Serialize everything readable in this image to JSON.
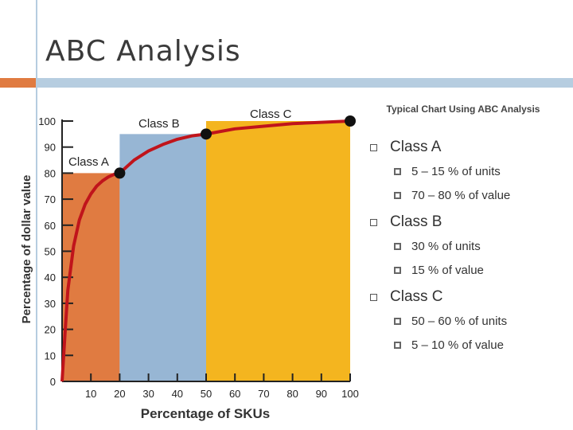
{
  "page": {
    "title": "ABC Analysis"
  },
  "colors": {
    "class_a": "#e07b41",
    "class_b": "#97b6d4",
    "class_c": "#f4b51f",
    "curve": "#c0141b",
    "accent": "#e07b41",
    "decor": "#b6cde0"
  },
  "chart_data": {
    "type": "area",
    "title": "Typical Chart Using ABC Analysis",
    "xlabel": "Percentage of SKUs",
    "ylabel": "Percentage of dollar value",
    "xlim": [
      0,
      100
    ],
    "ylim": [
      0,
      100
    ],
    "x_ticks": [
      10,
      20,
      30,
      40,
      50,
      60,
      70,
      80,
      90,
      100
    ],
    "y_ticks": [
      0,
      10,
      20,
      30,
      40,
      50,
      60,
      70,
      80,
      90,
      100
    ],
    "regions": [
      {
        "name": "Class A",
        "x_start": 0,
        "x_end": 20,
        "y_top": 80
      },
      {
        "name": "Class B",
        "x_start": 20,
        "x_end": 50,
        "y_top": 95
      },
      {
        "name": "Class C",
        "x_start": 50,
        "x_end": 100,
        "y_top": 100
      }
    ],
    "curve": {
      "x": [
        0,
        1,
        2,
        4,
        6,
        8,
        10,
        12,
        14,
        16,
        18,
        20,
        25,
        30,
        35,
        40,
        45,
        50,
        60,
        70,
        80,
        90,
        100
      ],
      "y": [
        0,
        18,
        35,
        52,
        62,
        68,
        72,
        75,
        77,
        78.5,
        79.5,
        80,
        85,
        88.5,
        91,
        93,
        94.3,
        95,
        97,
        98,
        99,
        99.5,
        100
      ]
    },
    "points": [
      {
        "x": 20,
        "y": 80
      },
      {
        "x": 50,
        "y": 95
      },
      {
        "x": 100,
        "y": 100
      }
    ],
    "region_labels": [
      "Class A",
      "Class B",
      "Class C"
    ]
  },
  "bullets": [
    {
      "label": "Class A",
      "subs": [
        "5 – 15 % of units",
        "70 – 80 % of value"
      ]
    },
    {
      "label": "Class B",
      "subs": [
        "30 % of units",
        "15 % of value"
      ]
    },
    {
      "label": "Class C",
      "subs": [
        "50 – 60 % of units",
        "5 – 10 % of value"
      ]
    }
  ]
}
